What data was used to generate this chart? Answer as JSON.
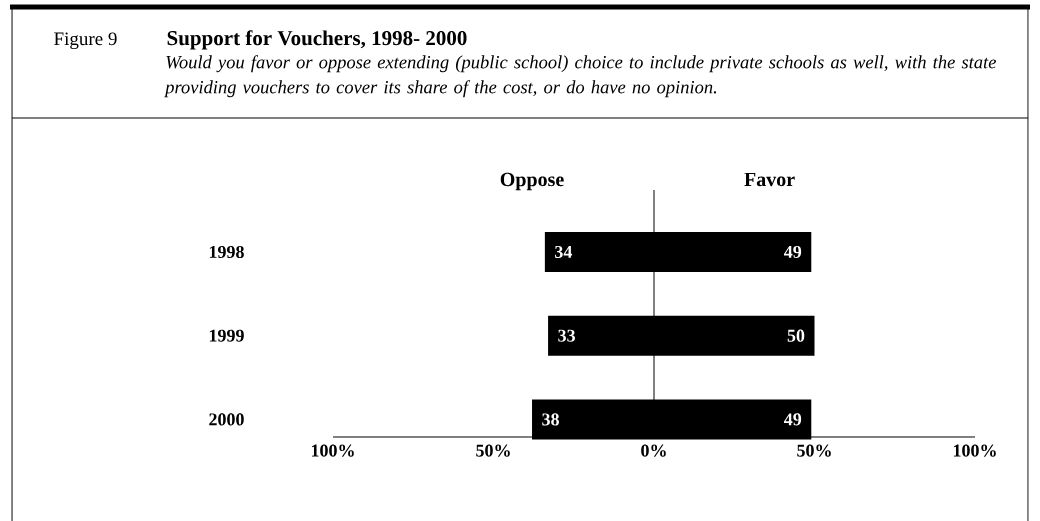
{
  "chart_data": {
    "type": "bar",
    "orientation": "horizontal",
    "title": "Support for Vouchers, 1998- 2000",
    "subtitle": "Would you favor or oppose extending (public school) choice to include private schools as well, with the state providing vouchers to cover its share of the cost, or do have no opinion.",
    "annotations": [
      "Figure 9"
    ],
    "categories": [
      "1998",
      "1999",
      "2000"
    ],
    "series": [
      {
        "name": "Oppose",
        "color": "#000000",
        "values": [
          34,
          33,
          38
        ],
        "base": [
          -34,
          -33,
          -38
        ],
        "data_labels": true
      },
      {
        "name": "Favor",
        "color": "#000000",
        "values": [
          49,
          50,
          49
        ],
        "data_labels": true
      }
    ],
    "xlim": [
      -100,
      100
    ],
    "xticks": [
      {
        "value": -100,
        "label": "100%"
      },
      {
        "value": -50,
        "label": "50%"
      },
      {
        "value": 0,
        "label": "0%"
      },
      {
        "value": 50,
        "label": "50%"
      },
      {
        "value": 100,
        "label": "100%"
      }
    ],
    "ref_lines": [
      {
        "axis": "x",
        "value": 0,
        "color": "#000000"
      }
    ]
  }
}
